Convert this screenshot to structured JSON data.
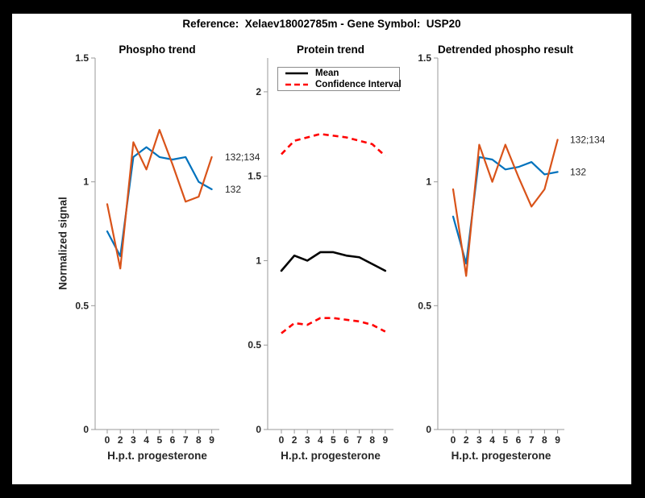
{
  "figure": {
    "title": "Reference:  Xelaev18002785m - Gene Symbol:  USP20",
    "background": "#ffffff",
    "frame_color": "#000000",
    "axis_color": "#999999",
    "tick_label_color": "#262626"
  },
  "chart_data": [
    {
      "type": "line",
      "title": "Phospho trend",
      "xlabel": "H.p.t. progesterone",
      "ylabel": "Normalized signal",
      "categories": [
        "0",
        "2",
        "3",
        "4",
        "5",
        "6",
        "7",
        "8",
        "9"
      ],
      "ylim": [
        0,
        1.5
      ],
      "yticks": [
        0,
        0.5,
        1,
        1.5
      ],
      "grid": false,
      "legend_position": "none",
      "series": [
        {
          "name": "132",
          "color": "#0072BD",
          "style": "solid",
          "values": [
            0.8,
            0.7,
            1.1,
            1.14,
            1.1,
            1.09,
            1.1,
            1.0,
            0.97
          ]
        },
        {
          "name": "132;134",
          "color": "#D95319",
          "style": "solid",
          "values": [
            0.91,
            0.65,
            1.16,
            1.05,
            1.21,
            1.07,
            0.92,
            0.94,
            1.1
          ]
        }
      ],
      "annotations": [
        {
          "text": "132;134",
          "value": 1.1
        },
        {
          "text": "132",
          "value": 0.97
        }
      ]
    },
    {
      "type": "line",
      "title": "Protein trend",
      "xlabel": "H.p.t. progesterone",
      "ylabel": "",
      "categories": [
        "0",
        "2",
        "3",
        "4",
        "5",
        "6",
        "7",
        "8",
        "9"
      ],
      "ylim": [
        0,
        2.2
      ],
      "yticks": [
        0,
        0.5,
        1,
        1.5,
        2
      ],
      "grid": false,
      "legend_position": "top-left",
      "series": [
        {
          "name": "Mean",
          "color": "#000000",
          "style": "solid",
          "values": [
            0.94,
            1.03,
            1.0,
            1.05,
            1.05,
            1.03,
            1.02,
            0.98,
            0.94
          ]
        },
        {
          "name": "CI upper",
          "color": "#FF0000",
          "style": "dashed",
          "values": [
            1.63,
            1.71,
            1.73,
            1.75,
            1.74,
            1.73,
            1.71,
            1.69,
            1.62
          ]
        },
        {
          "name": "CI lower",
          "color": "#FF0000",
          "style": "dashed",
          "values": [
            0.57,
            0.63,
            0.62,
            0.66,
            0.66,
            0.65,
            0.64,
            0.62,
            0.58
          ]
        }
      ],
      "legend": {
        "items": [
          {
            "label": "Mean",
            "color": "#000000",
            "style": "solid"
          },
          {
            "label": "Confidence Interval",
            "color": "#FF0000",
            "style": "dashed"
          }
        ]
      },
      "annotations": []
    },
    {
      "type": "line",
      "title": "Detrended phospho result",
      "xlabel": "H.p.t. progesterone",
      "ylabel": "",
      "categories": [
        "0",
        "2",
        "3",
        "4",
        "5",
        "6",
        "7",
        "8",
        "9"
      ],
      "ylim": [
        0,
        1.5
      ],
      "yticks": [
        0,
        0.5,
        1,
        1.5
      ],
      "grid": false,
      "legend_position": "none",
      "series": [
        {
          "name": "132",
          "color": "#0072BD",
          "style": "solid",
          "values": [
            0.86,
            0.67,
            1.1,
            1.09,
            1.05,
            1.06,
            1.08,
            1.03,
            1.04
          ]
        },
        {
          "name": "132;134",
          "color": "#D95319",
          "style": "solid",
          "values": [
            0.97,
            0.62,
            1.15,
            1.0,
            1.15,
            1.02,
            0.9,
            0.97,
            1.17
          ]
        }
      ],
      "annotations": [
        {
          "text": "132;134",
          "value": 1.17
        },
        {
          "text": "132",
          "value": 1.04
        }
      ]
    }
  ]
}
